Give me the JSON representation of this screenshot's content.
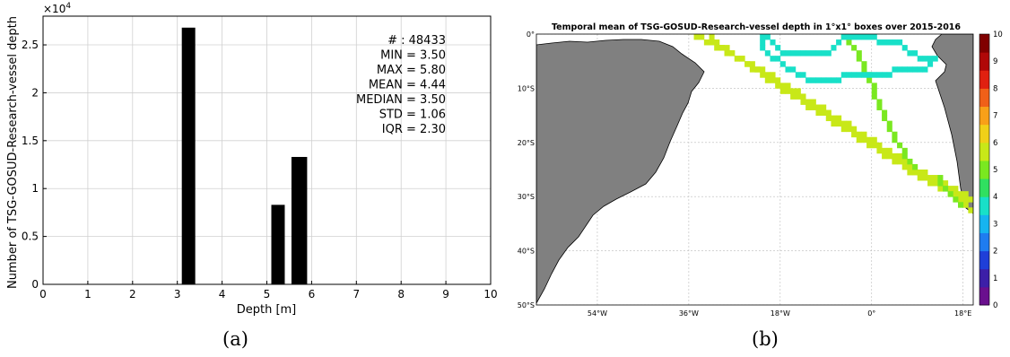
{
  "chart_data": [
    {
      "type": "bar",
      "xlabel": "Depth [m]",
      "ylabel": "Number of TSG-GOSUD-Research-vessel depth",
      "xlim": [
        0,
        10
      ],
      "ylim": [
        0,
        2.8
      ],
      "y_multiplier": "×10",
      "y_multiplier_exp": "4",
      "xticks": [
        "0",
        "1",
        "2",
        "3",
        "4",
        "5",
        "6",
        "7",
        "8",
        "9",
        "10"
      ],
      "yticks": [
        "0",
        "0.5",
        "1",
        "1.5",
        "2",
        "2.5"
      ],
      "grid": true,
      "bins": [
        {
          "x0": 3.1,
          "x1": 3.4,
          "value": 2.68
        },
        {
          "x0": 5.1,
          "x1": 5.4,
          "value": 0.83
        },
        {
          "x0": 5.55,
          "x1": 5.9,
          "value": 1.33
        }
      ],
      "stats": [
        "# : 48433",
        "MIN = 3.50",
        "MAX =  5.80",
        "MEAN = 4.44",
        "MEDIAN = 3.50",
        "STD = 1.06",
        "IQR = 2.30"
      ]
    },
    {
      "type": "heatmap",
      "title": "Temporal mean of TSG-GOSUD-Research-vessel depth in 1°x1° boxes over 2015-2016",
      "lon_ticks": [
        "54°W",
        "36°W",
        "18°W",
        "0°",
        "18°E"
      ],
      "lat_ticks": [
        "0°",
        "10°S",
        "20°S",
        "30°S",
        "40°S",
        "50°S"
      ],
      "lon_range": [
        -66,
        20
      ],
      "lat_range": [
        -50,
        0
      ],
      "colorbar": {
        "range": [
          0,
          10
        ],
        "ticks": [
          "0",
          "1",
          "2",
          "3",
          "4",
          "5",
          "6",
          "7",
          "8",
          "9",
          "10"
        ],
        "colormap": [
          "#6a0f8e",
          "#3c1fa8",
          "#1f3fd8",
          "#1f7cf0",
          "#16b4f0",
          "#18e0c8",
          "#30e060",
          "#7ae820",
          "#c8e818",
          "#f0d018",
          "#f8a018",
          "#f06018",
          "#e02010",
          "#b00808",
          "#800000"
        ]
      },
      "tracks": [
        {
          "name": "",
          "value": 5.8,
          "path": [
            [
              -36,
              0
            ],
            [
              -30,
              -3
            ],
            [
              -20,
              -8
            ],
            [
              -10,
              -14
            ],
            [
              0,
              -20
            ],
            [
              10,
              -26
            ],
            [
              20,
              -31
            ]
          ]
        },
        {
          "name": "",
          "value": 5.8,
          "path": [
            [
              -33,
              0
            ],
            [
              -26,
              -5
            ],
            [
              -15,
              -12
            ],
            [
              -5,
              -18
            ],
            [
              5,
              -24
            ],
            [
              18,
              -31
            ],
            [
              20,
              -34
            ]
          ]
        },
        {
          "name": "",
          "value": 5.3,
          "path": [
            [
              -6,
              0
            ],
            [
              -3,
              -4
            ],
            [
              0,
              -10
            ],
            [
              3,
              -17
            ],
            [
              6,
              -22
            ],
            [
              9,
              -26
            ]
          ]
        },
        {
          "name": "",
          "value": 5.3,
          "path": [
            [
              13,
              -27
            ],
            [
              15,
              -30
            ],
            [
              18,
              -33
            ]
          ]
        },
        {
          "name": "",
          "value": 3.5,
          "path": [
            [
              -22,
              0
            ],
            [
              -18,
              -4
            ],
            [
              -10,
              -4
            ],
            [
              -6,
              -1
            ],
            [
              0,
              -1
            ],
            [
              5,
              -2
            ],
            [
              8,
              -4
            ],
            [
              12,
              -5
            ],
            [
              10,
              -7
            ],
            [
              4,
              -7
            ],
            [
              0,
              -8
            ],
            [
              -6,
              -8
            ],
            [
              -12,
              -9
            ],
            [
              -16,
              -7
            ],
            [
              -22,
              -3
            ],
            [
              -22,
              0
            ]
          ]
        }
      ]
    }
  ],
  "captions": {
    "a": "(a)",
    "b": "(b)"
  }
}
